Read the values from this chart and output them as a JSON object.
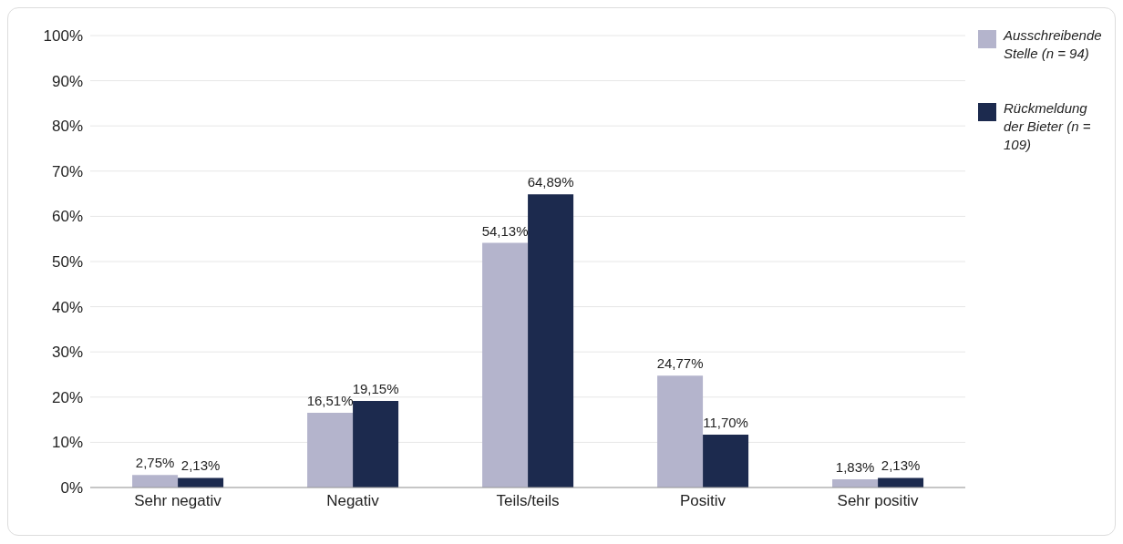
{
  "chart_data": {
    "type": "bar",
    "categories": [
      "Sehr negativ",
      "Negativ",
      "Teils/teils",
      "Positiv",
      "Sehr positiv"
    ],
    "series": [
      {
        "name": "Ausschreibende Stelle (n = 94)",
        "color": "#b4b4cc",
        "values": [
          2.75,
          16.51,
          54.13,
          24.77,
          1.83
        ],
        "value_labels": [
          "2,75%",
          "16,51%",
          "54,13%",
          "24,77%",
          "1,83%"
        ]
      },
      {
        "name": "Rückmeldung der Bieter (n = 109)",
        "color": "#1c2a4e",
        "values": [
          2.13,
          19.15,
          64.89,
          11.7,
          2.13
        ],
        "value_labels": [
          "2,13%",
          "19,15%",
          "64,89%",
          "11,70%",
          "2,13%"
        ]
      }
    ],
    "ylim": [
      0,
      100
    ],
    "yticks": [
      {
        "value": 0,
        "label": "0%"
      },
      {
        "value": 10,
        "label": "10%"
      },
      {
        "value": 20,
        "label": "20%"
      },
      {
        "value": 30,
        "label": "30%"
      },
      {
        "value": 40,
        "label": "40%"
      },
      {
        "value": 50,
        "label": "50%"
      },
      {
        "value": 60,
        "label": "60%"
      },
      {
        "value": 70,
        "label": "70%"
      },
      {
        "value": 80,
        "label": "80%"
      },
      {
        "value": 90,
        "label": "90%"
      },
      {
        "value": 100,
        "label": "100%"
      }
    ],
    "grid": "y",
    "legend": "top right"
  }
}
